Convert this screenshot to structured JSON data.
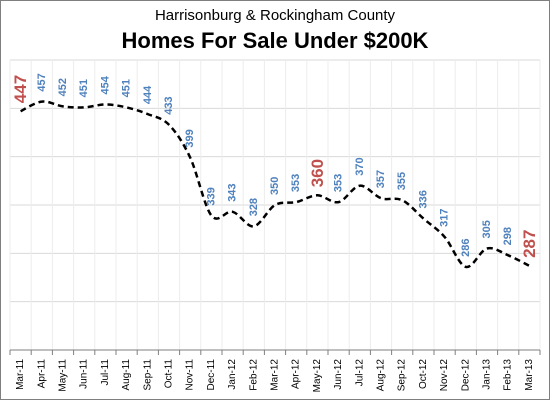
{
  "chart_data": {
    "type": "line",
    "subtitle": "Harrisonburg  & Rockingham County",
    "title": "Homes For Sale Under $200K",
    "categories": [
      "Mar-11",
      "Apr-11",
      "May-11",
      "Jun-11",
      "Jul-11",
      "Aug-11",
      "Sep-11",
      "Oct-11",
      "Nov-11",
      "Dec-11",
      "Jan-12",
      "Feb-12",
      "Mar-12",
      "Apr-12",
      "May-12",
      "Jun-12",
      "Jul-12",
      "Aug-12",
      "Sep-12",
      "Oct-12",
      "Nov-12",
      "Dec-12",
      "Jan-13",
      "Feb-13",
      "Mar-13"
    ],
    "series": [
      {
        "values": [
          447,
          457,
          452,
          451,
          454,
          451,
          444,
          433,
          399,
          339,
          343,
          328,
          350,
          353,
          360,
          353,
          370,
          357,
          355,
          336,
          317,
          286,
          305,
          298,
          287
        ],
        "labels": [
          "447",
          "457",
          "452",
          "451",
          "454",
          "451",
          "444",
          "433",
          "399",
          "339",
          "343",
          "328",
          "350",
          "353",
          "360",
          "353",
          "370",
          "357",
          "355",
          "336",
          "317",
          "286",
          "305",
          "298",
          "287"
        ],
        "highlight_indices": [
          0,
          14,
          24
        ],
        "line_color": "#000000",
        "line_style": "dashed"
      }
    ],
    "ylim": [
      200,
      500
    ],
    "grid": true,
    "colors": {
      "label": "#4f81bd",
      "highlight": "#c0504d",
      "grid": "#d9d9d9",
      "axis": "#7f7f7f"
    }
  }
}
